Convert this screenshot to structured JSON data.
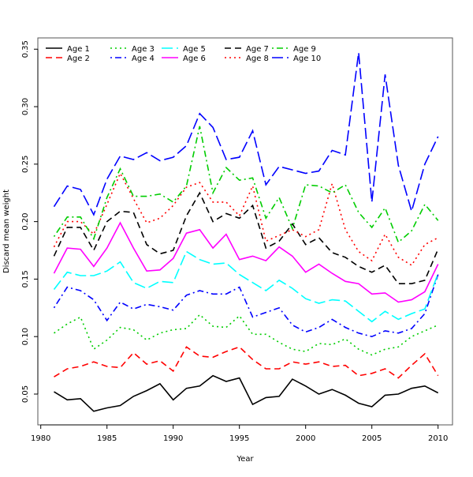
{
  "chart_data": {
    "type": "line",
    "title": "",
    "xlabel": "Year",
    "ylabel": "Discard mean weight",
    "xlim": [
      1979.78,
      2011.09
    ],
    "ylim": [
      0.0232,
      0.3598
    ],
    "xticks": [
      1980,
      1985,
      1990,
      1995,
      2000,
      2005,
      2010
    ],
    "yticks": [
      0.05,
      0.1,
      0.15,
      0.2,
      0.25,
      0.3,
      0.35
    ],
    "ytick_labels": [
      "0.05",
      "0.10",
      "0.15",
      "0.20",
      "0.25",
      "0.30",
      "0.35"
    ],
    "grid": false,
    "legend_position": "top-left",
    "x": [
      1981,
      1982,
      1983,
      1984,
      1985,
      1986,
      1987,
      1988,
      1989,
      1990,
      1991,
      1992,
      1993,
      1994,
      1995,
      1996,
      1997,
      1998,
      1999,
      2000,
      2001,
      2002,
      2003,
      2004,
      2005,
      2006,
      2007,
      2008,
      2009,
      2010
    ],
    "series": [
      {
        "name": "Age 1",
        "color": "#000000",
        "dash": "solid",
        "values": [
          0.052,
          0.045,
          0.046,
          0.035,
          0.038,
          0.04,
          0.048,
          0.053,
          0.059,
          0.045,
          0.055,
          0.057,
          0.066,
          0.061,
          0.064,
          0.041,
          0.047,
          0.048,
          0.063,
          0.057,
          0.05,
          0.054,
          0.049,
          0.042,
          0.039,
          0.049,
          0.05,
          0.055,
          0.057,
          0.051
        ]
      },
      {
        "name": "Age 2",
        "color": "#ff0000",
        "dash": "dashed",
        "values": [
          0.065,
          0.072,
          0.074,
          0.078,
          0.074,
          0.073,
          0.086,
          0.076,
          0.079,
          0.07,
          0.091,
          0.083,
          0.082,
          0.087,
          0.091,
          0.08,
          0.072,
          0.072,
          0.078,
          0.076,
          0.078,
          0.074,
          0.075,
          0.066,
          0.068,
          0.072,
          0.064,
          0.075,
          0.085,
          0.066
        ]
      },
      {
        "name": "Age 3",
        "color": "#00cd00",
        "dash": "dotted",
        "values": [
          0.103,
          0.111,
          0.117,
          0.089,
          0.097,
          0.108,
          0.106,
          0.097,
          0.103,
          0.106,
          0.107,
          0.119,
          0.109,
          0.108,
          0.118,
          0.102,
          0.102,
          0.095,
          0.089,
          0.087,
          0.094,
          0.093,
          0.098,
          0.089,
          0.084,
          0.089,
          0.091,
          0.1,
          0.105,
          0.11
        ]
      },
      {
        "name": "Age 4",
        "color": "#0000ff",
        "dash": "dotdash",
        "values": [
          0.125,
          0.143,
          0.14,
          0.132,
          0.114,
          0.13,
          0.124,
          0.128,
          0.126,
          0.123,
          0.136,
          0.14,
          0.137,
          0.137,
          0.143,
          0.117,
          0.121,
          0.125,
          0.11,
          0.104,
          0.108,
          0.115,
          0.108,
          0.103,
          0.1,
          0.105,
          0.103,
          0.107,
          0.12,
          0.154
        ]
      },
      {
        "name": "Age 5",
        "color": "#00ffff",
        "dash": "longdash",
        "values": [
          0.141,
          0.156,
          0.153,
          0.153,
          0.157,
          0.165,
          0.147,
          0.142,
          0.148,
          0.147,
          0.174,
          0.167,
          0.163,
          0.164,
          0.154,
          0.147,
          0.14,
          0.149,
          0.142,
          0.133,
          0.129,
          0.132,
          0.131,
          0.122,
          0.113,
          0.122,
          0.115,
          0.12,
          0.124,
          0.155
        ]
      },
      {
        "name": "Age 6",
        "color": "#ff00ff",
        "dash": "solid",
        "values": [
          0.155,
          0.177,
          0.176,
          0.161,
          0.177,
          0.199,
          0.177,
          0.157,
          0.158,
          0.168,
          0.19,
          0.193,
          0.177,
          0.189,
          0.167,
          0.17,
          0.166,
          0.178,
          0.17,
          0.156,
          0.163,
          0.155,
          0.148,
          0.146,
          0.137,
          0.138,
          0.13,
          0.132,
          0.139,
          0.163
        ]
      },
      {
        "name": "Age 7",
        "color": "#000000",
        "dash": "dashed",
        "values": [
          0.17,
          0.195,
          0.195,
          0.175,
          0.2,
          0.209,
          0.208,
          0.18,
          0.172,
          0.175,
          0.205,
          0.225,
          0.2,
          0.207,
          0.203,
          0.214,
          0.177,
          0.183,
          0.198,
          0.18,
          0.186,
          0.173,
          0.169,
          0.161,
          0.156,
          0.162,
          0.146,
          0.146,
          0.149,
          0.176
        ]
      },
      {
        "name": "Age 8",
        "color": "#ff0000",
        "dash": "dotted",
        "values": [
          0.178,
          0.2,
          0.2,
          0.189,
          0.215,
          0.242,
          0.22,
          0.199,
          0.203,
          0.214,
          0.23,
          0.234,
          0.217,
          0.217,
          0.205,
          0.231,
          0.183,
          0.188,
          0.193,
          0.187,
          0.193,
          0.233,
          0.193,
          0.174,
          0.166,
          0.189,
          0.169,
          0.162,
          0.18,
          0.186
        ]
      },
      {
        "name": "Age 9",
        "color": "#00cd00",
        "dash": "dotdash",
        "values": [
          0.187,
          0.204,
          0.204,
          0.185,
          0.221,
          0.246,
          0.222,
          0.222,
          0.224,
          0.217,
          0.231,
          0.283,
          0.225,
          0.247,
          0.236,
          0.238,
          0.203,
          0.221,
          0.194,
          0.232,
          0.231,
          0.225,
          0.232,
          0.208,
          0.195,
          0.212,
          0.182,
          0.192,
          0.215,
          0.201
        ]
      },
      {
        "name": "Age 10",
        "color": "#0000ff",
        "dash": "longdash",
        "values": [
          0.213,
          0.231,
          0.228,
          0.206,
          0.237,
          0.257,
          0.254,
          0.26,
          0.253,
          0.256,
          0.266,
          0.294,
          0.282,
          0.254,
          0.256,
          0.279,
          0.232,
          0.248,
          0.245,
          0.242,
          0.244,
          0.262,
          0.258,
          0.347,
          0.217,
          0.328,
          0.249,
          0.209,
          0.25,
          0.274
        ]
      }
    ]
  }
}
